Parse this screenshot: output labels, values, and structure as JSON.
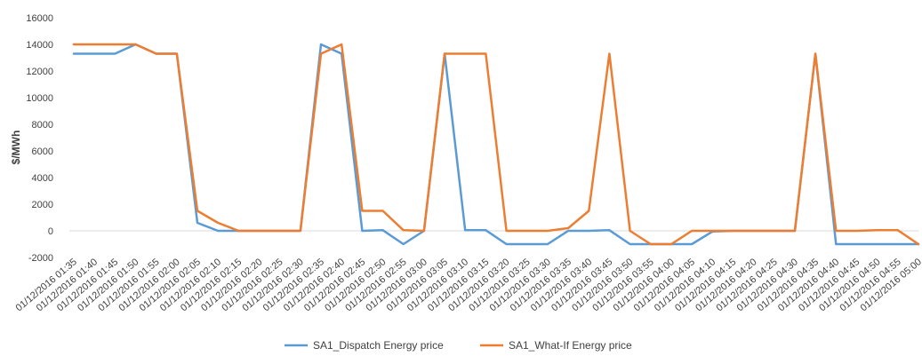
{
  "chart_data": {
    "type": "line",
    "title": "",
    "xlabel": "",
    "ylabel": "$/MWh",
    "ylim": [
      -2000,
      16000
    ],
    "yticks": [
      -2000,
      0,
      2000,
      4000,
      6000,
      8000,
      10000,
      12000,
      14000,
      16000
    ],
    "grid": false,
    "legend_position": "bottom",
    "x": [
      "01/12/2016 01:35",
      "01/12/2016 01:40",
      "01/12/2016 01:45",
      "01/12/2016 01:50",
      "01/12/2016 01:55",
      "01/12/2016 02:00",
      "01/12/2016 02:05",
      "01/12/2016 02:10",
      "01/12/2016 02:15",
      "01/12/2016 02:20",
      "01/12/2016 02:25",
      "01/12/2016 02:30",
      "01/12/2016 02:35",
      "01/12/2016 02:40",
      "01/12/2016 02:45",
      "01/12/2016 02:50",
      "01/12/2016 02:55",
      "01/12/2016 03:00",
      "01/12/2016 03:05",
      "01/12/2016 03:10",
      "01/12/2016 03:15",
      "01/12/2016 03:20",
      "01/12/2016 03:25",
      "01/12/2016 03:30",
      "01/12/2016 03:35",
      "01/12/2016 03:40",
      "01/12/2016 03:45",
      "01/12/2016 03:50",
      "01/12/2016 03:55",
      "01/12/2016 04:00",
      "01/12/2016 04:05",
      "01/12/2016 04:10",
      "01/12/2016 04:15",
      "01/12/2016 04:20",
      "01/12/2016 04:25",
      "01/12/2016 04:30",
      "01/12/2016 04:35",
      "01/12/2016 04:40",
      "01/12/2016 04:45",
      "01/12/2016 04:50",
      "01/12/2016 04:55",
      "01/12/2016 05:00"
    ],
    "series": [
      {
        "name": "SA1_Dispatch Energy price",
        "color": "#5b9bd5",
        "values": [
          13300,
          13300,
          13300,
          14000,
          13300,
          13300,
          600,
          0,
          0,
          0,
          0,
          0,
          14000,
          13300,
          0,
          50,
          -1000,
          0,
          13300,
          50,
          50,
          -1000,
          -1000,
          -1000,
          0,
          0,
          50,
          -1000,
          -1000,
          -1000,
          -1000,
          -50,
          0,
          0,
          0,
          0,
          13300,
          -1000,
          -1000,
          -1000,
          -1000,
          -1000
        ]
      },
      {
        "name": "SA1_What-If Energy price",
        "color": "#ed7d31",
        "values": [
          14000,
          14000,
          14000,
          14000,
          13300,
          13300,
          1500,
          600,
          0,
          0,
          0,
          0,
          13300,
          14000,
          1500,
          1500,
          50,
          0,
          13300,
          13300,
          13300,
          0,
          0,
          0,
          200,
          1500,
          13300,
          0,
          -1000,
          -1000,
          0,
          0,
          0,
          0,
          0,
          0,
          13300,
          0,
          0,
          50,
          50,
          -1000
        ]
      }
    ]
  }
}
